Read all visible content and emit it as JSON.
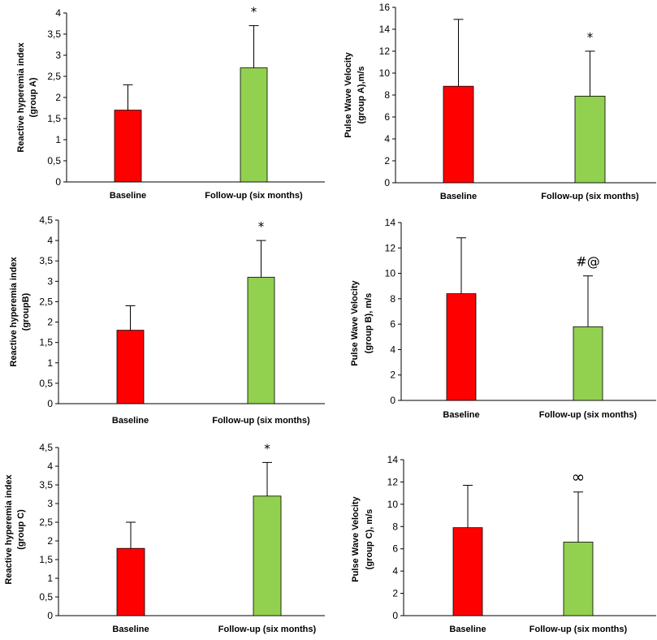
{
  "colors": {
    "baseline": "#ff0000",
    "followup": "#92d050",
    "axis": "#000000"
  },
  "chart_data": [
    {
      "type": "bar",
      "title": "",
      "categories": [
        "Baseline",
        "Follow-up (six months)"
      ],
      "values": [
        1.7,
        2.7
      ],
      "error": [
        0.6,
        1.0
      ],
      "ylim": [
        0,
        4
      ],
      "yticks": [
        "0",
        "0,5",
        "1",
        "1,5",
        "2",
        "2,5",
        "3",
        "3,5",
        "4"
      ],
      "ylabel_lines": [
        "Reactive hyperemia index",
        "(group A)"
      ],
      "annotations": [
        "",
        "*"
      ]
    },
    {
      "type": "bar",
      "title": "",
      "categories": [
        "Baseline",
        "Follow-up (six months)"
      ],
      "values": [
        8.8,
        7.9
      ],
      "error": [
        6.1,
        4.1
      ],
      "ylim": [
        0,
        16
      ],
      "yticks": [
        "0",
        "2",
        "4",
        "6",
        "8",
        "10",
        "12",
        "14",
        "16"
      ],
      "ylabel_lines": [
        "Pulse Wave Velocity",
        "(group A),m/s"
      ],
      "annotations": [
        "",
        "*"
      ]
    },
    {
      "type": "bar",
      "title": "",
      "categories": [
        "Baseline",
        "Follow-up (six months)"
      ],
      "values": [
        1.8,
        3.1
      ],
      "error": [
        0.6,
        0.9
      ],
      "ylim": [
        0,
        4.5
      ],
      "yticks": [
        "0",
        "0,5",
        "1",
        "1,5",
        "2",
        "2,5",
        "3",
        "3,5",
        "4",
        "4,5"
      ],
      "ylabel_lines": [
        "Reactive hyperemia index",
        "(groupB)"
      ],
      "annotations": [
        "",
        "*"
      ]
    },
    {
      "type": "bar",
      "title": "",
      "categories": [
        "Baseline",
        "Follow-up (six months)"
      ],
      "values": [
        8.4,
        5.8
      ],
      "error": [
        4.4,
        4.0
      ],
      "ylim": [
        0,
        14
      ],
      "yticks": [
        "0",
        "2",
        "4",
        "6",
        "8",
        "10",
        "12",
        "14"
      ],
      "ylabel_lines": [
        "Pulse Wave Velocity",
        "(group B), m/s"
      ],
      "annotations": [
        "",
        "#@"
      ]
    },
    {
      "type": "bar",
      "title": "",
      "categories": [
        "Baseline",
        "Follow-up (six months)"
      ],
      "values": [
        1.8,
        3.2
      ],
      "error": [
        0.7,
        0.9
      ],
      "ylim": [
        0,
        4.5
      ],
      "yticks": [
        "0",
        "0,5",
        "1",
        "1,5",
        "2",
        "2,5",
        "3",
        "3,5",
        "4",
        "4,5"
      ],
      "ylabel_lines": [
        "Reactive hyperemia index",
        "(group C)"
      ],
      "annotations": [
        "",
        "*"
      ]
    },
    {
      "type": "bar",
      "title": "",
      "categories": [
        "Baseline",
        "Follow-up (six months)"
      ],
      "values": [
        7.9,
        6.6
      ],
      "error": [
        3.8,
        4.5
      ],
      "ylim": [
        0,
        14
      ],
      "yticks": [
        "0",
        "2",
        "4",
        "6",
        "8",
        "10",
        "12",
        "14"
      ],
      "ylabel_lines": [
        "Pulse Wave Velocity",
        "(group C), m/s"
      ],
      "annotations": [
        "",
        "∞"
      ]
    }
  ]
}
